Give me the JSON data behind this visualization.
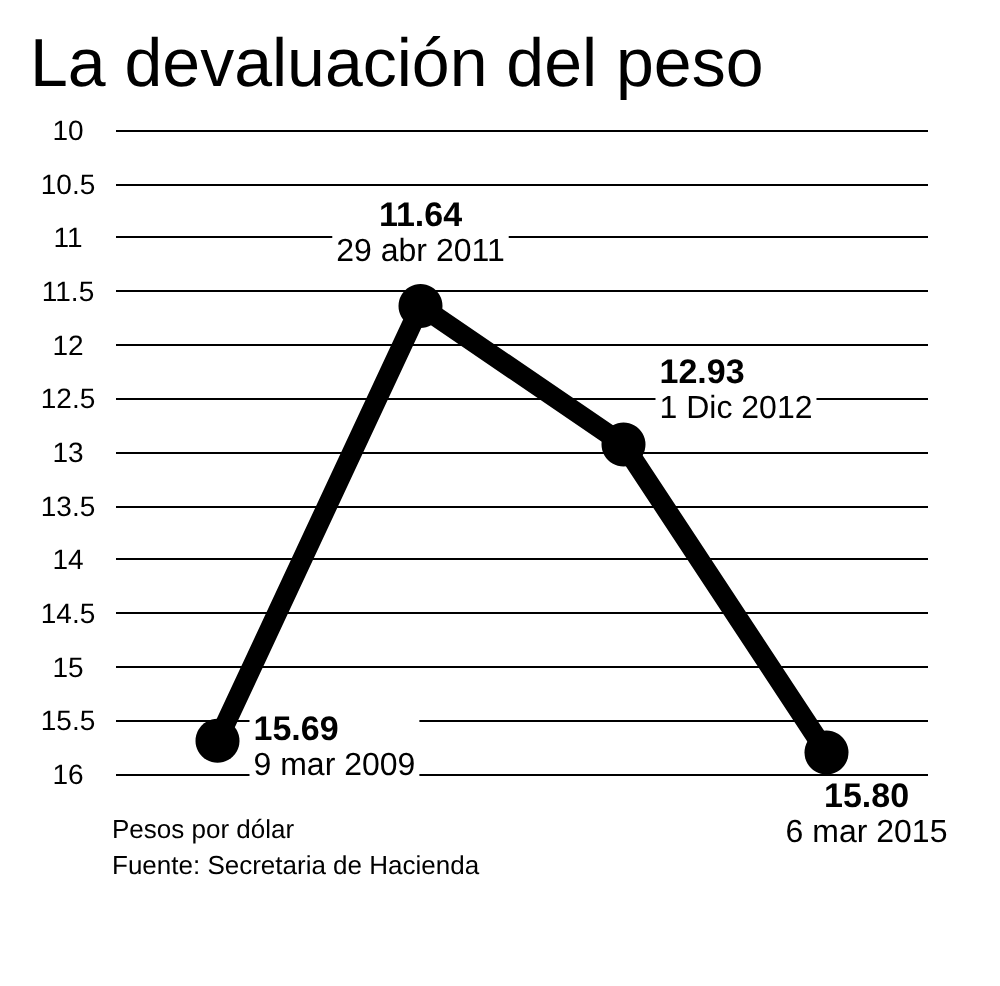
{
  "chart_data": {
    "type": "line",
    "title": "La devaluación del peso",
    "categories": [
      null,
      null,
      null,
      null
    ],
    "values": [
      15.69,
      11.64,
      12.93,
      15.8
    ],
    "value_labels": [
      "15.69",
      "11.64",
      "12.93",
      "15.80"
    ],
    "color": "#000000",
    "marker": "circle",
    "line_style": "solid",
    "ylim": [
      16,
      10
    ],
    "yticks": [
      10,
      10.5,
      11,
      11.5,
      12,
      12.5,
      13,
      13.5,
      14,
      14.5,
      15,
      15.5,
      16
    ],
    "grid": "y",
    "tick_labels": "y",
    "annotations": [
      "9 mar 2009",
      "29 abr 2011",
      "1 Dic 2012",
      "6 mar 2015",
      "Pesos por dólar",
      "Fuente: Secretaria de Hacienda"
    ]
  }
}
